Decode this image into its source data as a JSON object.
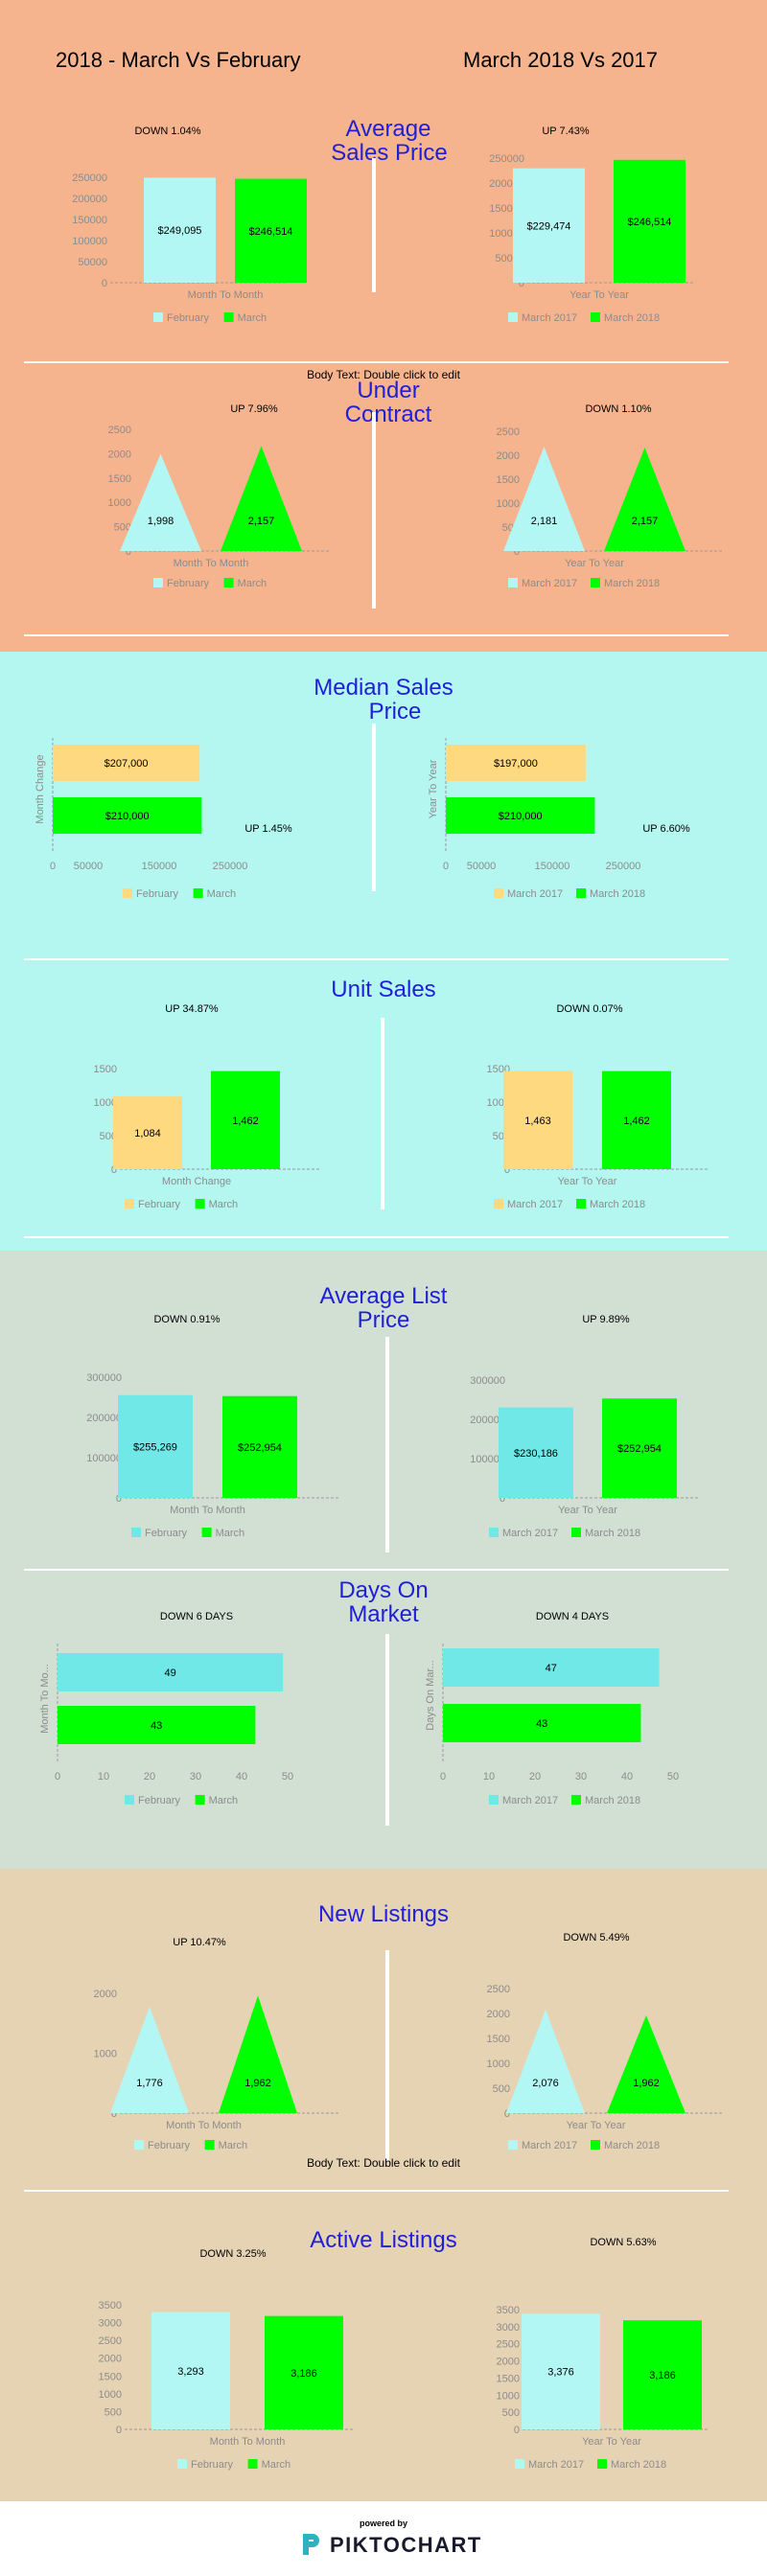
{
  "header": {
    "left": "2018 - March Vs February",
    "right": "March 2018 Vs 2017"
  },
  "notes": {
    "body_text": "Body Text: Double click to edit"
  },
  "footer": {
    "powered": "powered by",
    "brand": "PIKTOCHART"
  },
  "colors": {
    "band_orange": "#f5b48e",
    "band_cyan": "#b3f7f0",
    "band_sage": "#d1e0d2",
    "band_tan": "#e6d3b4",
    "light_cyan": "#b3f7f4",
    "cyan": "#70e8e8",
    "green": "#00ff00",
    "yellow": "#ffd97f",
    "title_blue": "#1f1fd8"
  },
  "sections": [
    {
      "title_lines": [
        "Average",
        "Sales Price"
      ]
    },
    {
      "title_lines": [
        "Under",
        "Contract"
      ]
    },
    {
      "title_lines": [
        "Median Sales",
        "Price"
      ]
    },
    {
      "title_lines": [
        "Unit Sales"
      ]
    },
    {
      "title_lines": [
        "Average List",
        "Price"
      ]
    },
    {
      "title_lines": [
        "Days On",
        "Market"
      ]
    },
    {
      "title_lines": [
        "New Listings"
      ]
    },
    {
      "title_lines": [
        "Active Listings"
      ]
    }
  ],
  "chart_data": [
    {
      "id": "asp-l",
      "type": "bar",
      "annotation": "DOWN 1.04%",
      "xlabel": "Month To Month",
      "ylim": [
        0,
        250000
      ],
      "yticks": [
        0,
        50000,
        100000,
        150000,
        200000,
        250000
      ],
      "colors": [
        "#b3f7f4",
        "#00ff00"
      ],
      "legend": [
        "February",
        "March"
      ],
      "labels": [
        "$249,095",
        "$246,514"
      ],
      "values": [
        249095,
        246514
      ]
    },
    {
      "id": "asp-r",
      "type": "bar",
      "annotation": "UP 7.43%",
      "xlabel": "Year To Year",
      "ylim": [
        0,
        250000
      ],
      "yticks": [
        0,
        50000,
        100000,
        150000,
        200000,
        250000
      ],
      "colors": [
        "#b3f7f4",
        "#00ff00"
      ],
      "legend": [
        "March 2017",
        "March 2018"
      ],
      "labels": [
        "$229,474",
        "$246,514"
      ],
      "values": [
        229474,
        246514
      ]
    },
    {
      "id": "uc-l",
      "type": "triangle",
      "annotation": "UP 7.96%",
      "xlabel": "Month To Month",
      "ylim": [
        0,
        2500
      ],
      "yticks": [
        0,
        500,
        1000,
        1500,
        2000,
        2500
      ],
      "colors": [
        "#b3f7f4",
        "#00ff00"
      ],
      "legend": [
        "February",
        "March"
      ],
      "labels": [
        "1,998",
        "2,157"
      ],
      "values": [
        1998,
        2157
      ]
    },
    {
      "id": "uc-r",
      "type": "triangle",
      "annotation": "DOWN 1.10%",
      "xlabel": "Year To Year",
      "ylim": [
        0,
        2500
      ],
      "yticks": [
        0,
        500,
        1000,
        1500,
        2000,
        2500
      ],
      "colors": [
        "#b3f7f4",
        "#00ff00"
      ],
      "legend": [
        "March 2017",
        "March 2018"
      ],
      "labels": [
        "2,181",
        "2,157"
      ],
      "values": [
        2181,
        2157
      ]
    },
    {
      "id": "msp-l",
      "type": "hbar",
      "annotation": "UP 1.45%",
      "ylabel": "Month Change",
      "xlim": [
        0,
        250000
      ],
      "xticks": [
        0,
        50000,
        150000,
        250000
      ],
      "colors": [
        "#ffd97f",
        "#00ff00"
      ],
      "legend": [
        "February",
        "March"
      ],
      "labels": [
        "$207,000",
        "$210,000"
      ],
      "values": [
        207000,
        210000
      ]
    },
    {
      "id": "msp-r",
      "type": "hbar",
      "annotation": "UP 6.60%",
      "ylabel": "Year To Year",
      "xlim": [
        0,
        250000
      ],
      "xticks": [
        0,
        50000,
        150000,
        250000
      ],
      "colors": [
        "#ffd97f",
        "#00ff00"
      ],
      "legend": [
        "March 2017",
        "March 2018"
      ],
      "labels": [
        "$197,000",
        "$210,000"
      ],
      "values": [
        197000,
        210000
      ]
    },
    {
      "id": "us-l",
      "type": "bar",
      "annotation": "UP 34.87%",
      "xlabel": "Month Change",
      "ylim": [
        0,
        1500
      ],
      "yticks": [
        0,
        500,
        1000,
        1500
      ],
      "colors": [
        "#ffd97f",
        "#00ff00"
      ],
      "legend": [
        "February",
        "March"
      ],
      "labels": [
        "1,084",
        "1,462"
      ],
      "values": [
        1084,
        1462
      ]
    },
    {
      "id": "us-r",
      "type": "bar",
      "annotation": "DOWN 0.07%",
      "xlabel": "Year To Year",
      "ylim": [
        0,
        1500
      ],
      "yticks": [
        0,
        500,
        1000,
        1500
      ],
      "colors": [
        "#ffd97f",
        "#00ff00"
      ],
      "legend": [
        "March 2017",
        "March 2018"
      ],
      "labels": [
        "1,463",
        "1,462"
      ],
      "values": [
        1463,
        1462
      ]
    },
    {
      "id": "alp-l",
      "type": "bar",
      "annotation": "DOWN 0.91%",
      "xlabel": "Month To Month",
      "ylim": [
        0,
        300000
      ],
      "yticks": [
        0,
        100000,
        200000,
        300000
      ],
      "colors": [
        "#70e8e8",
        "#00ff00"
      ],
      "legend": [
        "February",
        "March"
      ],
      "labels": [
        "$255,269",
        "$252,954"
      ],
      "values": [
        255269,
        252954
      ]
    },
    {
      "id": "alp-r",
      "type": "bar",
      "annotation": "UP 9.89%",
      "xlabel": "Year To Year",
      "ylim": [
        0,
        300000
      ],
      "yticks": [
        0,
        100000,
        200000,
        300000
      ],
      "colors": [
        "#70e8e8",
        "#00ff00"
      ],
      "legend": [
        "March 2017",
        "March 2018"
      ],
      "labels": [
        "$230,186",
        "$252,954"
      ],
      "values": [
        230186,
        252954
      ]
    },
    {
      "id": "dom-l",
      "type": "hbar",
      "annotation": "DOWN 6 DAYS",
      "ylabel": "Month To Mo...",
      "xlim": [
        0,
        50
      ],
      "xticks": [
        0,
        10,
        20,
        30,
        40,
        50
      ],
      "colors": [
        "#70e8e8",
        "#00ff00"
      ],
      "legend": [
        "February",
        "March"
      ],
      "labels": [
        "49",
        "43"
      ],
      "values": [
        49,
        43
      ]
    },
    {
      "id": "dom-r",
      "type": "hbar",
      "annotation": "DOWN 4 DAYS",
      "ylabel": "Days On Mar...",
      "xlim": [
        0,
        50
      ],
      "xticks": [
        0,
        10,
        20,
        30,
        40,
        50
      ],
      "colors": [
        "#70e8e8",
        "#00ff00"
      ],
      "legend": [
        "March 2017",
        "March 2018"
      ],
      "labels": [
        "47",
        "43"
      ],
      "values": [
        47,
        43
      ]
    },
    {
      "id": "nl-l",
      "type": "triangle",
      "annotation": "UP 10.47%",
      "xlabel": "Month To Month",
      "ylim": [
        0,
        2000
      ],
      "yticks": [
        0,
        1000,
        2000
      ],
      "colors": [
        "#b3f7f4",
        "#00ff00"
      ],
      "legend": [
        "February",
        "March"
      ],
      "labels": [
        "1,776",
        "1,962"
      ],
      "values": [
        1776,
        1962
      ]
    },
    {
      "id": "nl-r",
      "type": "triangle",
      "annotation": "DOWN 5.49%",
      "xlabel": "Year To Year",
      "ylim": [
        0,
        2500
      ],
      "yticks": [
        0,
        500,
        1000,
        1500,
        2000,
        2500
      ],
      "colors": [
        "#b3f7f4",
        "#00ff00"
      ],
      "legend": [
        "March 2017",
        "March 2018"
      ],
      "labels": [
        "2,076",
        "1,962"
      ],
      "values": [
        2076,
        1962
      ]
    },
    {
      "id": "al-l",
      "type": "bar",
      "annotation": "DOWN 3.25%",
      "xlabel": "Month To Month",
      "ylim": [
        0,
        3500
      ],
      "yticks": [
        0,
        500,
        1000,
        1500,
        2000,
        2500,
        3000,
        3500
      ],
      "colors": [
        "#b3f7f4",
        "#00ff00"
      ],
      "legend": [
        "February",
        "March"
      ],
      "labels": [
        "3,293",
        "3,186"
      ],
      "values": [
        3293,
        3186
      ]
    },
    {
      "id": "al-r",
      "type": "bar",
      "annotation": "DOWN 5.63%",
      "xlabel": "Year To Year",
      "ylim": [
        0,
        3500
      ],
      "yticks": [
        0,
        500,
        1000,
        1500,
        2000,
        2500,
        3000,
        3500
      ],
      "colors": [
        "#b3f7f4",
        "#00ff00"
      ],
      "legend": [
        "March 2017",
        "March 2018"
      ],
      "labels": [
        "3,376",
        "3,186"
      ],
      "values": [
        3376,
        3186
      ]
    }
  ]
}
